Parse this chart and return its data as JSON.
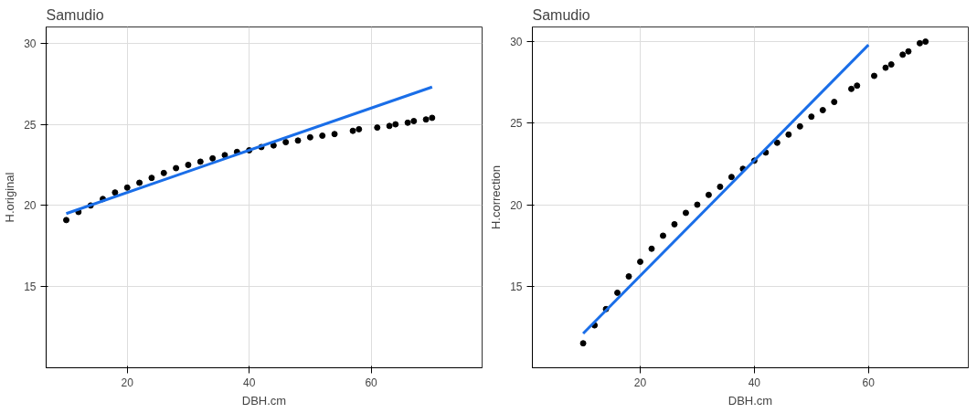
{
  "chart_data": [
    {
      "type": "scatter",
      "title": "Samudio",
      "xlabel": "DBH.cm",
      "ylabel": "H.original",
      "xlim": [
        6.7,
        78.2
      ],
      "ylim": [
        10,
        31
      ],
      "xticks": [
        20,
        40,
        60
      ],
      "yticks": [
        15,
        20,
        25,
        30
      ],
      "grid": true,
      "series": [
        {
          "marker": "circle",
          "color": "#000000",
          "x": [
            10,
            12,
            14,
            16,
            18,
            20,
            22,
            24,
            26,
            28,
            30,
            32,
            34,
            36,
            38,
            40,
            42,
            44,
            46,
            48,
            50,
            52,
            54,
            57,
            58,
            61,
            63,
            64,
            66,
            67,
            69,
            70
          ],
          "values": [
            19.1,
            19.6,
            20.0,
            20.4,
            20.8,
            21.1,
            21.4,
            21.7,
            22.0,
            22.3,
            22.5,
            22.7,
            22.9,
            23.1,
            23.3,
            23.4,
            23.6,
            23.7,
            23.9,
            24.0,
            24.2,
            24.3,
            24.4,
            24.6,
            24.7,
            24.8,
            24.9,
            25.0,
            25.1,
            25.2,
            25.3,
            25.4
          ]
        },
        {
          "type": "line",
          "color": "#1a6ee8",
          "x": [
            10,
            70
          ],
          "values": [
            19.5,
            27.3
          ]
        }
      ]
    },
    {
      "type": "scatter",
      "title": "Samudio",
      "xlabel": "DBH.cm",
      "ylabel": "H.correction",
      "xlim": [
        1.1,
        77.5
      ],
      "ylim": [
        10,
        30.9
      ],
      "xticks": [
        20,
        40,
        60
      ],
      "yticks": [
        15,
        20,
        25,
        30
      ],
      "grid": true,
      "series": [
        {
          "marker": "circle",
          "color": "#000000",
          "x": [
            10,
            12,
            14,
            16,
            18,
            20,
            22,
            24,
            26,
            28,
            30,
            32,
            34,
            36,
            38,
            40,
            42,
            44,
            46,
            48,
            50,
            52,
            54,
            57,
            58,
            61,
            63,
            64,
            66,
            67,
            69,
            70
          ],
          "values": [
            11.5,
            12.6,
            13.6,
            14.6,
            15.6,
            16.5,
            17.3,
            18.1,
            18.8,
            19.5,
            20.0,
            20.6,
            21.1,
            21.7,
            22.2,
            22.7,
            23.2,
            23.8,
            24.3,
            24.8,
            25.4,
            25.8,
            26.3,
            27.1,
            27.3,
            27.9,
            28.4,
            28.6,
            29.2,
            29.4,
            29.9,
            30.0
          ]
        },
        {
          "type": "line",
          "color": "#1a6ee8",
          "x": [
            10,
            60
          ],
          "values": [
            12.1,
            29.8
          ]
        }
      ]
    }
  ]
}
